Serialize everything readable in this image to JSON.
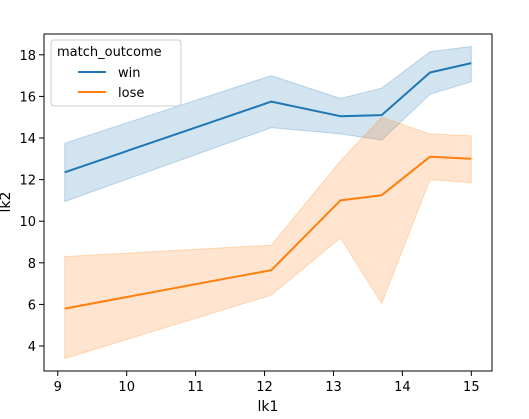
{
  "chart_data": {
    "type": "line",
    "xlabel": "lk1",
    "ylabel": "lk2",
    "xlim": [
      8.8,
      15.3
    ],
    "ylim": [
      2.8,
      19.0
    ],
    "xticks": [
      9,
      10,
      11,
      12,
      13,
      14,
      15
    ],
    "yticks": [
      4,
      6,
      8,
      10,
      12,
      14,
      16,
      18
    ],
    "grid": false,
    "legend": {
      "title": "match_outcome",
      "placement": "top-left"
    },
    "series": [
      {
        "name": "win",
        "color": "#1f77b4",
        "points": [
          {
            "x": 9.1,
            "y": 12.35,
            "lo": 10.95,
            "hi": 13.75
          },
          {
            "x": 12.1,
            "y": 15.75,
            "lo": 14.5,
            "hi": 17.0
          },
          {
            "x": 13.1,
            "y": 15.05,
            "lo": 14.2,
            "hi": 15.9
          },
          {
            "x": 13.7,
            "y": 15.1,
            "lo": 13.9,
            "hi": 16.4
          },
          {
            "x": 14.4,
            "y": 17.15,
            "lo": 16.1,
            "hi": 18.15
          },
          {
            "x": 15.0,
            "y": 17.6,
            "lo": 16.7,
            "hi": 18.4
          }
        ]
      },
      {
        "name": "lose",
        "color": "#ff7f0e",
        "points": [
          {
            "x": 9.1,
            "y": 5.8,
            "lo": 3.4,
            "hi": 8.3
          },
          {
            "x": 12.1,
            "y": 7.65,
            "lo": 6.45,
            "hi": 8.85
          },
          {
            "x": 13.1,
            "y": 11.0,
            "lo": 9.2,
            "hi": 12.9
          },
          {
            "x": 13.7,
            "y": 11.25,
            "lo": 6.05,
            "hi": 15.0
          },
          {
            "x": 14.4,
            "y": 13.1,
            "lo": 12.0,
            "hi": 14.2
          },
          {
            "x": 15.0,
            "y": 13.0,
            "lo": 11.85,
            "hi": 14.1
          }
        ]
      }
    ]
  }
}
